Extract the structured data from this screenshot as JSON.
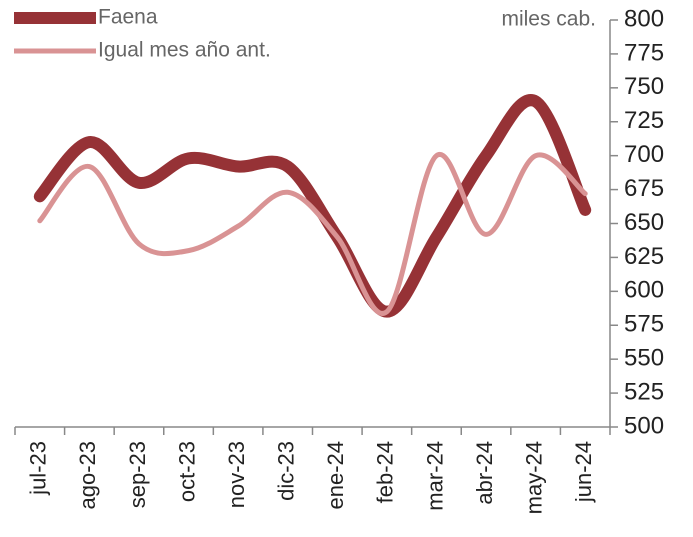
{
  "chart_data": {
    "type": "line",
    "unit_label": "miles cab.",
    "categories": [
      "jul-23",
      "ago-23",
      "sep-23",
      "oct-23",
      "nov-23",
      "dic-23",
      "ene-24",
      "feb-24",
      "mar-24",
      "abr-24",
      "may-24",
      "jun-24"
    ],
    "series": [
      {
        "name": "Faena",
        "color": "#963236",
        "width": 12,
        "values": [
          670,
          710,
          680,
          698,
          692,
          692,
          640,
          585,
          640,
          700,
          740,
          660
        ]
      },
      {
        "name": "Igual mes año ant.",
        "color": "#d99394",
        "width": 5,
        "values": [
          652,
          692,
          635,
          630,
          648,
          673,
          640,
          585,
          700,
          642,
          700,
          672
        ]
      }
    ],
    "ylim": [
      500,
      800
    ],
    "yticks": [
      500,
      525,
      550,
      575,
      600,
      625,
      650,
      675,
      700,
      725,
      750,
      775,
      800
    ],
    "y_axis_side": "right"
  }
}
